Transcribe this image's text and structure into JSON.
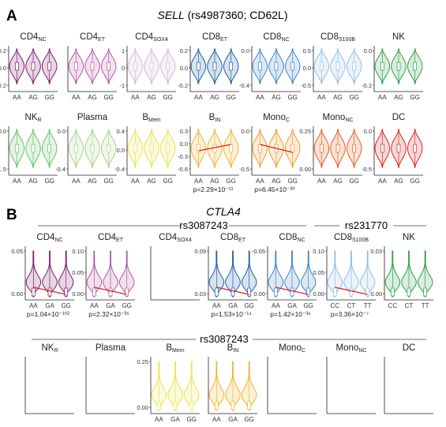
{
  "panels": {
    "A": {
      "label": "A",
      "title_gene": "SELL",
      "title_rest": " (rs4987360; CD62L)"
    },
    "B": {
      "label": "B",
      "title_gene": "CTLA4",
      "group1": "rs3087243",
      "group2": "rs231770",
      "group3": "rs3087243"
    }
  },
  "chart_data": [
    {
      "type": "violin",
      "panel": "A",
      "cell": "CD4",
      "sub": "NC",
      "color": "#7b1d6e",
      "categories": [
        "AA",
        "AG",
        "GG"
      ],
      "yticks": [
        "0.2",
        "0.0",
        "-0.2"
      ],
      "pvalue": "",
      "trend": false
    },
    {
      "type": "violin",
      "panel": "A",
      "cell": "CD4",
      "sub": "ET",
      "color": "#b357a4",
      "categories": [
        "AA",
        "AG",
        "GG"
      ],
      "yticks": [],
      "pvalue": "",
      "trend": false
    },
    {
      "type": "violin",
      "panel": "A",
      "cell": "CD4",
      "sub": "SOX4",
      "color": "#d7b3dc",
      "categories": [
        "AA",
        "AG",
        "GG"
      ],
      "yticks": [
        "1",
        "0",
        "-1"
      ],
      "pvalue": "",
      "trend": false
    },
    {
      "type": "violin",
      "panel": "A",
      "cell": "CD8",
      "sub": "ET",
      "color": "#1f5fa6",
      "categories": [
        "AA",
        "AG",
        "GG"
      ],
      "yticks": [
        "0.2",
        "0.0",
        "-0.2"
      ],
      "pvalue": "",
      "trend": false
    },
    {
      "type": "violin",
      "panel": "A",
      "cell": "CD8",
      "sub": "NC",
      "color": "#3d84c6",
      "categories": [
        "AA",
        "AG",
        "GG"
      ],
      "yticks": [
        "0.0",
        "-0.4"
      ],
      "pvalue": "",
      "trend": false
    },
    {
      "type": "violin",
      "panel": "A",
      "cell": "CD8",
      "sub": "S100B",
      "color": "#8fbde6",
      "categories": [
        "AA",
        "AG",
        "GG"
      ],
      "yticks": [
        "0.5",
        "0.0",
        "-0.5"
      ],
      "pvalue": "",
      "trend": false
    },
    {
      "type": "violin",
      "panel": "A",
      "cell": "NK",
      "sub": "",
      "color": "#2e9e48",
      "categories": [
        "AA",
        "AG",
        "GG"
      ],
      "yticks": [
        "0.0",
        "-0.2"
      ],
      "pvalue": "",
      "trend": false
    },
    {
      "type": "violin",
      "panel": "A",
      "cell": "NK",
      "sub": "R",
      "color": "#6cbf6a",
      "categories": [
        "AA",
        "AG",
        "GG"
      ],
      "yticks": [
        "0.0",
        "-1.5"
      ],
      "pvalue": "",
      "trend": false
    },
    {
      "type": "violin",
      "panel": "A",
      "cell": "Plasma",
      "sub": "",
      "color": "#a9d18e",
      "categories": [
        "AA",
        "AG",
        "GG"
      ],
      "yticks": [
        "0.0",
        "-0.4"
      ],
      "pvalue": "",
      "trend": false
    },
    {
      "type": "violin",
      "panel": "A",
      "cell": "B",
      "sub": "Mem",
      "color": "#e8e44a",
      "categories": [
        "AA",
        "AG",
        "GG"
      ],
      "yticks": [
        "0.4",
        "0.0",
        "-0.4"
      ],
      "pvalue": "",
      "trend": false
    },
    {
      "type": "violin",
      "panel": "A",
      "cell": "B",
      "sub": "IN",
      "color": "#f0b429",
      "categories": [
        "AA",
        "AG",
        "GG"
      ],
      "yticks": [
        "0.3",
        "0.0",
        "-0.3",
        "-0.6"
      ],
      "pvalue": "p=2.29×10⁻¹¹",
      "trend": "up"
    },
    {
      "type": "violin",
      "panel": "A",
      "cell": "Mono",
      "sub": "C",
      "color": "#f39a2d",
      "categories": [
        "AA",
        "AG",
        "GG"
      ],
      "yticks": [
        "0.0",
        "-0.5"
      ],
      "pvalue": "p=6.45×10⁻³⁰",
      "trend": "down"
    },
    {
      "type": "violin",
      "panel": "A",
      "cell": "Mono",
      "sub": "NC",
      "color": "#e55f1e",
      "categories": [
        "AA",
        "AG",
        "GG"
      ],
      "yticks": [
        "0.25",
        "0.00"
      ],
      "pvalue": "",
      "trend": false
    },
    {
      "type": "violin",
      "panel": "A",
      "cell": "DC",
      "sub": "",
      "color": "#d62728",
      "categories": [
        "AA",
        "AG",
        "GG"
      ],
      "yticks": [
        "0.0",
        "-0.5"
      ],
      "pvalue": "",
      "trend": false
    },
    {
      "type": "violin",
      "panel": "B",
      "cell": "CD4",
      "sub": "NC",
      "color": "#7b1d6e",
      "categories": [
        "AA",
        "GA",
        "GG"
      ],
      "yticks": [
        "0.05",
        "0.00"
      ],
      "pvalue": "p=1.04×10⁻¹⁰²",
      "trend": "down",
      "empty": false
    },
    {
      "type": "violin",
      "panel": "B",
      "cell": "CD4",
      "sub": "ET",
      "color": "#b357a4",
      "categories": [
        "AA",
        "GA",
        "GG"
      ],
      "yticks": [
        "0.10",
        "0.05",
        "0.00"
      ],
      "pvalue": "p=2.32×10⁻³⁵",
      "trend": "down",
      "empty": false
    },
    {
      "type": "violin",
      "panel": "B",
      "cell": "CD4",
      "sub": "SOX4",
      "color": "#d7b3dc",
      "categories": [],
      "yticks": [],
      "pvalue": "",
      "trend": false,
      "empty": true
    },
    {
      "type": "violin",
      "panel": "B",
      "cell": "CD8",
      "sub": "ET",
      "color": "#1f5fa6",
      "categories": [
        "AA",
        "GA",
        "GG"
      ],
      "yticks": [
        "0.09",
        "0.03"
      ],
      "pvalue": "p=1.53×10⁻¹⁴",
      "trend": "down",
      "empty": false
    },
    {
      "type": "violin",
      "panel": "B",
      "cell": "CD8",
      "sub": "NC",
      "color": "#3d84c6",
      "categories": [
        "AA",
        "GA",
        "GG"
      ],
      "yticks": [
        "-0.05",
        "0.00"
      ],
      "pvalue": "p=1.42×10⁻³⁶",
      "trend": "down",
      "empty": false
    },
    {
      "type": "violin",
      "panel": "B",
      "cell": "CD8",
      "sub": "S100B",
      "color": "#8fbde6",
      "categories": [
        "CC",
        "CT",
        "TT"
      ],
      "yticks": [
        "0.10",
        "0.05",
        "0.00"
      ],
      "pvalue": "p=3.36×10⁻⁷",
      "trend": "down",
      "empty": false
    },
    {
      "type": "violin",
      "panel": "B",
      "cell": "NK",
      "sub": "",
      "color": "#2e9e48",
      "categories": [
        "CC",
        "CT",
        "TT"
      ],
      "yticks": [
        "0.03",
        "0.00"
      ],
      "pvalue": "",
      "trend": false,
      "empty": false
    },
    {
      "type": "violin",
      "panel": "B",
      "cell": "NK",
      "sub": "R",
      "color": "#6cbf6a",
      "categories": [],
      "yticks": [],
      "pvalue": "",
      "trend": false,
      "empty": true
    },
    {
      "type": "violin",
      "panel": "B",
      "cell": "Plasma",
      "sub": "",
      "color": "#a9d18e",
      "categories": [],
      "yticks": [],
      "pvalue": "",
      "trend": false,
      "empty": true
    },
    {
      "type": "violin",
      "panel": "B",
      "cell": "B",
      "sub": "Mem",
      "color": "#e8e44a",
      "categories": [
        "AA",
        "GA",
        "GG"
      ],
      "yticks": [
        "0.25",
        "0.00"
      ],
      "pvalue": "",
      "trend": false,
      "empty": false
    },
    {
      "type": "violin",
      "panel": "B",
      "cell": "B",
      "sub": "IN",
      "color": "#f0b429",
      "categories": [
        "AA",
        "GA",
        "GG"
      ],
      "yticks": [],
      "pvalue": "",
      "trend": false,
      "empty": false
    },
    {
      "type": "violin",
      "panel": "B",
      "cell": "Mono",
      "sub": "C",
      "color": "#f39a2d",
      "categories": [],
      "yticks": [],
      "pvalue": "",
      "trend": false,
      "empty": true
    },
    {
      "type": "violin",
      "panel": "B",
      "cell": "Mono",
      "sub": "NC",
      "color": "#e55f1e",
      "categories": [],
      "yticks": [],
      "pvalue": "",
      "trend": false,
      "empty": true
    },
    {
      "type": "violin",
      "panel": "B",
      "cell": "DC",
      "sub": "",
      "color": "#d62728",
      "categories": [],
      "yticks": [],
      "pvalue": "",
      "trend": false,
      "empty": true
    }
  ]
}
